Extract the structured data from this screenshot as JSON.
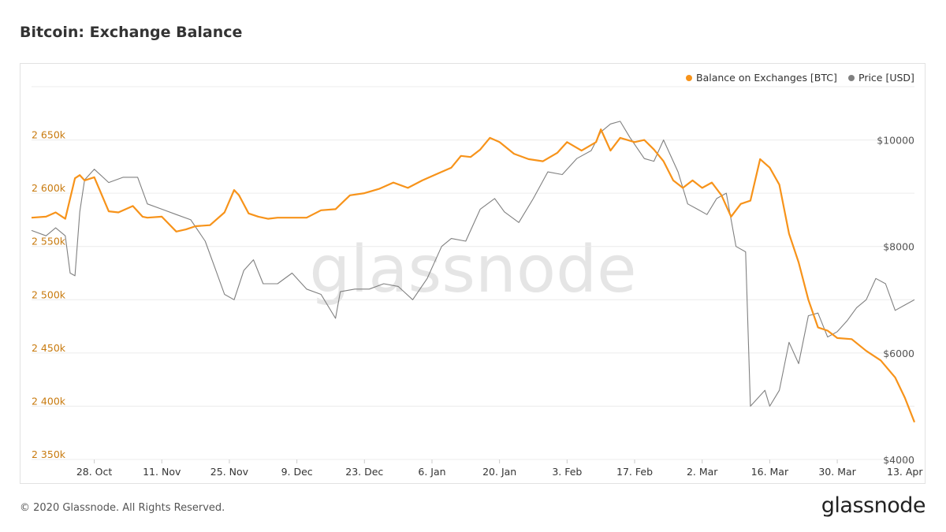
{
  "page": {
    "title": "Bitcoin: Exchange Balance",
    "footer": "© 2020 Glassnode. All Rights Reserved.",
    "brand": "glassnode",
    "watermark": "glassnode"
  },
  "chart_data": {
    "type": "line",
    "title": "Bitcoin: Exchange Balance",
    "legend_position": "top-right",
    "grid": true,
    "x_ticks": [
      "28. Oct",
      "11. Nov",
      "25. Nov",
      "9. Dec",
      "23. Dec",
      "6. Jan",
      "20. Jan",
      "3. Feb",
      "17. Feb",
      "2. Mar",
      "16. Mar",
      "30. Mar",
      "13. Apr"
    ],
    "x_range": [
      "2019-10-15",
      "2020-04-15"
    ],
    "y_left": {
      "ticks": [
        "2 350k",
        "2 400k",
        "2 450k",
        "2 500k",
        "2 550k",
        "2 600k",
        "2 650k"
      ],
      "range": [
        2350000,
        2700000
      ],
      "color": "#c87a0e"
    },
    "y_right": {
      "ticks": [
        "$4000",
        "$6000",
        "$8000",
        "$10000"
      ],
      "range": [
        4000,
        11000
      ],
      "color": "#555555"
    },
    "series": [
      {
        "name": "Balance on Exchanges [BTC]",
        "color": "#f7931a",
        "axis": "left",
        "x": [
          "2019-10-15",
          "2019-10-18",
          "2019-10-20",
          "2019-10-22",
          "2019-10-24",
          "2019-10-25",
          "2019-10-26",
          "2019-10-28",
          "2019-10-31",
          "2019-11-02",
          "2019-11-05",
          "2019-11-07",
          "2019-11-08",
          "2019-11-11",
          "2019-11-14",
          "2019-11-15",
          "2019-11-16",
          "2019-11-18",
          "2019-11-21",
          "2019-11-24",
          "2019-11-26",
          "2019-11-27",
          "2019-11-29",
          "2019-12-01",
          "2019-12-03",
          "2019-12-05",
          "2019-12-08",
          "2019-12-11",
          "2019-12-14",
          "2019-12-17",
          "2019-12-20",
          "2019-12-23",
          "2019-12-26",
          "2019-12-29",
          "2020-01-01",
          "2020-01-04",
          "2020-01-07",
          "2020-01-10",
          "2020-01-12",
          "2020-01-14",
          "2020-01-16",
          "2020-01-18",
          "2020-01-20",
          "2020-01-23",
          "2020-01-26",
          "2020-01-29",
          "2020-02-01",
          "2020-02-03",
          "2020-02-06",
          "2020-02-09",
          "2020-02-10",
          "2020-02-12",
          "2020-02-14",
          "2020-02-17",
          "2020-02-19",
          "2020-02-21",
          "2020-02-23",
          "2020-02-25",
          "2020-02-27",
          "2020-02-29",
          "2020-03-02",
          "2020-03-04",
          "2020-03-06",
          "2020-03-08",
          "2020-03-10",
          "2020-03-12",
          "2020-03-14",
          "2020-03-16",
          "2020-03-18",
          "2020-03-20",
          "2020-03-22",
          "2020-03-24",
          "2020-03-26",
          "2020-03-28",
          "2020-03-30",
          "2020-04-02",
          "2020-04-05",
          "2020-04-08",
          "2020-04-11",
          "2020-04-13",
          "2020-04-15"
        ],
        "values": [
          2577000,
          2578000,
          2582000,
          2576000,
          2614000,
          2617000,
          2612000,
          2615000,
          2583000,
          2582000,
          2588000,
          2578000,
          2577000,
          2578000,
          2564000,
          2565000,
          2566000,
          2569000,
          2570000,
          2582000,
          2603000,
          2598000,
          2581000,
          2578000,
          2576000,
          2577000,
          2577000,
          2577000,
          2584000,
          2585000,
          2598000,
          2600000,
          2604000,
          2610000,
          2605000,
          2612000,
          2618000,
          2624000,
          2635000,
          2634000,
          2641000,
          2652000,
          2648000,
          2637000,
          2632000,
          2630000,
          2638000,
          2648000,
          2640000,
          2648000,
          2660000,
          2640000,
          2652000,
          2648000,
          2650000,
          2641000,
          2630000,
          2612000,
          2605000,
          2612000,
          2605000,
          2610000,
          2598000,
          2578000,
          2590000,
          2593000,
          2632000,
          2624000,
          2608000,
          2562000,
          2535000,
          2500000,
          2474000,
          2471000,
          2464000,
          2463000,
          2452000,
          2443000,
          2427000,
          2408000,
          2385000
        ]
      },
      {
        "name": "Price [USD]",
        "color": "#808080",
        "axis": "right",
        "x": [
          "2019-10-15",
          "2019-10-18",
          "2019-10-20",
          "2019-10-22",
          "2019-10-23",
          "2019-10-24",
          "2019-10-25",
          "2019-10-26",
          "2019-10-28",
          "2019-10-31",
          "2019-11-03",
          "2019-11-06",
          "2019-11-08",
          "2019-11-11",
          "2019-11-14",
          "2019-11-17",
          "2019-11-20",
          "2019-11-22",
          "2019-11-24",
          "2019-11-26",
          "2019-11-28",
          "2019-11-30",
          "2019-12-02",
          "2019-12-05",
          "2019-12-08",
          "2019-12-11",
          "2019-12-14",
          "2019-12-17",
          "2019-12-18",
          "2019-12-21",
          "2019-12-24",
          "2019-12-27",
          "2019-12-30",
          "2020-01-02",
          "2020-01-05",
          "2020-01-08",
          "2020-01-10",
          "2020-01-13",
          "2020-01-16",
          "2020-01-19",
          "2020-01-21",
          "2020-01-24",
          "2020-01-27",
          "2020-01-30",
          "2020-02-02",
          "2020-02-05",
          "2020-02-08",
          "2020-02-10",
          "2020-02-12",
          "2020-02-14",
          "2020-02-16",
          "2020-02-19",
          "2020-02-21",
          "2020-02-23",
          "2020-02-26",
          "2020-02-28",
          "2020-03-01",
          "2020-03-03",
          "2020-03-05",
          "2020-03-07",
          "2020-03-09",
          "2020-03-11",
          "2020-03-12",
          "2020-03-13",
          "2020-03-15",
          "2020-03-16",
          "2020-03-18",
          "2020-03-20",
          "2020-03-22",
          "2020-03-24",
          "2020-03-26",
          "2020-03-28",
          "2020-03-30",
          "2020-04-01",
          "2020-04-03",
          "2020-04-05",
          "2020-04-07",
          "2020-04-09",
          "2020-04-11",
          "2020-04-13",
          "2020-04-15"
        ],
        "values": [
          8300,
          8200,
          8350,
          8200,
          7500,
          7450,
          8650,
          9250,
          9450,
          9200,
          9300,
          9300,
          8800,
          8700,
          8600,
          8500,
          8100,
          7600,
          7100,
          7000,
          7550,
          7750,
          7300,
          7300,
          7500,
          7200,
          7100,
          6650,
          7150,
          7200,
          7200,
          7300,
          7250,
          7000,
          7400,
          8000,
          8150,
          8100,
          8700,
          8900,
          8650,
          8450,
          8900,
          9400,
          9350,
          9650,
          9800,
          10150,
          10300,
          10350,
          10050,
          9650,
          9600,
          10000,
          9400,
          8800,
          8700,
          8600,
          8900,
          9000,
          8000,
          7900,
          5000,
          5100,
          5300,
          5000,
          5300,
          6200,
          5800,
          6700,
          6750,
          6300,
          6400,
          6600,
          6850,
          7000,
          7400,
          7300,
          6800,
          6900,
          7000
        ]
      }
    ]
  }
}
